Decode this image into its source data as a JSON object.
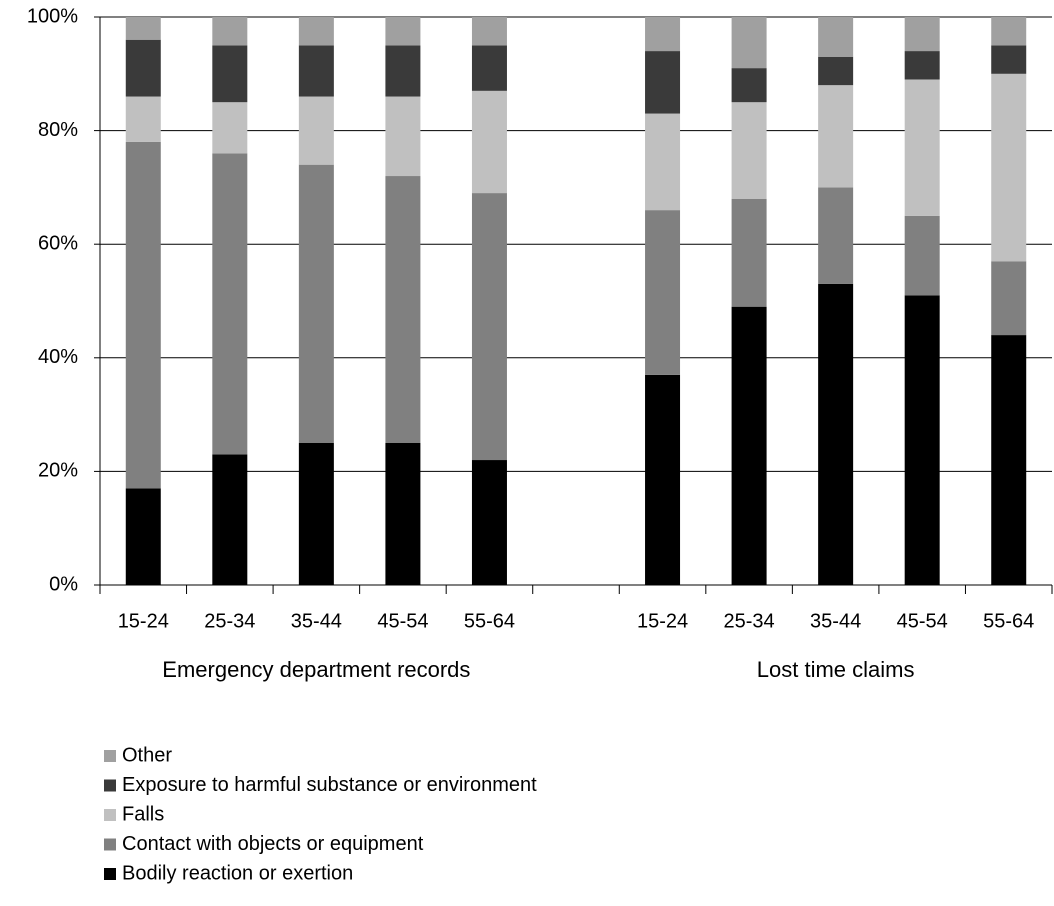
{
  "chart_data": {
    "type": "stacked-bar",
    "categories": [
      "15-24",
      "25-34",
      "35-44",
      "45-54",
      "55-64",
      null,
      "15-24",
      "25-34",
      "35-44",
      "45-54",
      "55-64"
    ],
    "annotations": [
      "Emergency department records",
      "Lost time claims"
    ],
    "series": [
      {
        "name": "Bodily reaction or exertion",
        "color": "#000000",
        "values": [
          17,
          23,
          25,
          25,
          22,
          null,
          37,
          49,
          53,
          51,
          44
        ]
      },
      {
        "name": "Contact with objects or equipment",
        "color": "#808080",
        "values": [
          61,
          53,
          49,
          47,
          47,
          null,
          29,
          19,
          17,
          14,
          13
        ]
      },
      {
        "name": "Falls",
        "color": "#c0c0c0",
        "values": [
          8,
          9,
          12,
          14,
          18,
          null,
          17,
          17,
          18,
          24,
          33
        ]
      },
      {
        "name": "Exposure to harmful substance or environment",
        "color": "#3a3a3a",
        "values": [
          10,
          10,
          9,
          9,
          8,
          null,
          11,
          6,
          5,
          5,
          5
        ]
      },
      {
        "name": "Other",
        "color": "#a0a0a0",
        "values": [
          4,
          5,
          5,
          5,
          5,
          null,
          6,
          9,
          7,
          6,
          5
        ]
      }
    ],
    "ylim": [
      0,
      100
    ],
    "yticks": [
      {
        "value": 0,
        "label": "0%"
      },
      {
        "value": 20,
        "label": "20%"
      },
      {
        "value": 40,
        "label": "40%"
      },
      {
        "value": 60,
        "label": "60%"
      },
      {
        "value": 80,
        "label": "80%"
      },
      {
        "value": 100,
        "label": "100%"
      }
    ],
    "grid": true
  }
}
